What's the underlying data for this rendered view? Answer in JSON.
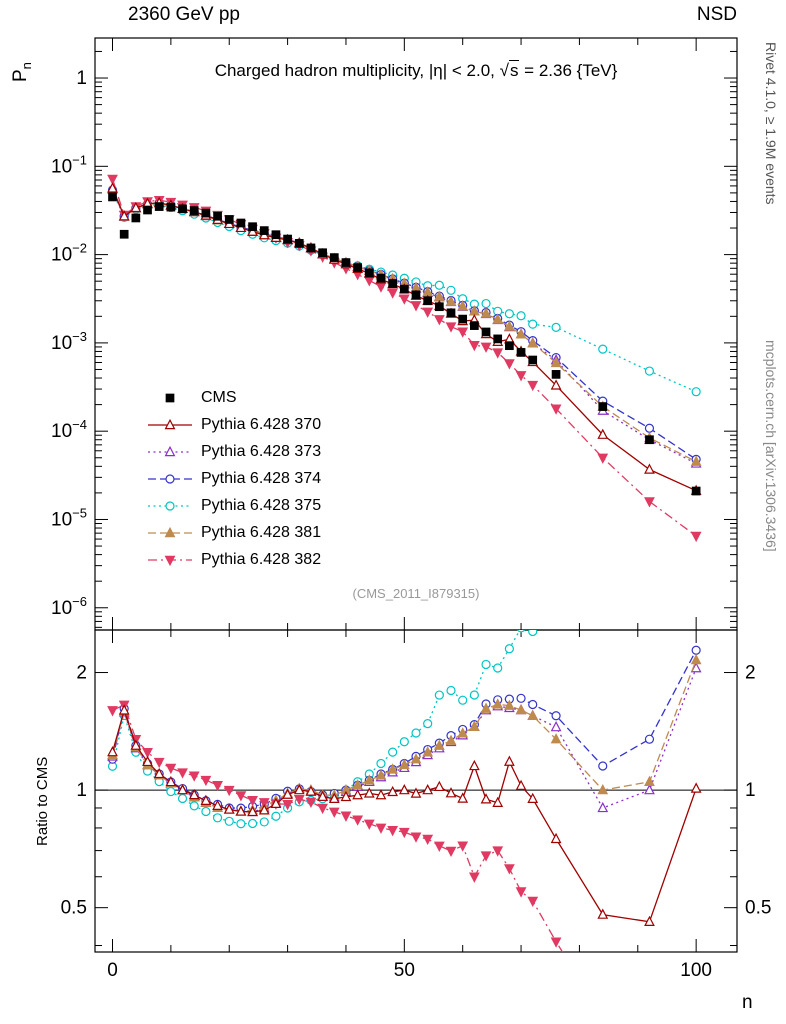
{
  "header": {
    "left": "2360 GeV pp",
    "right": "NSD"
  },
  "title": {
    "pre": "Charged hadron multiplicity, |η| < 2.0, ",
    "sqrt_sym": "√",
    "sqrt_arg": "s",
    "post": " = 2.36 {TeV}"
  },
  "watermark": "(CMS_2011_I879315)",
  "side_notes": {
    "top": "Rivet 4.1.0, ≥ 1.9M events",
    "bottom": "mcplots.cern.ch [arXiv:1306.3436]"
  },
  "axes": {
    "x_label": "n",
    "y_main_base": "P",
    "y_main_sub": "n",
    "y_ratio_label": "Ratio to CMS",
    "x_major_ticks": [
      0,
      50,
      100
    ],
    "x_minor_step": 10,
    "x_range": [
      -3,
      107
    ],
    "main_y_tick_exponents": [
      0,
      -1,
      -2,
      -3,
      -4,
      -5,
      -6
    ],
    "ratio_tick_labels": [
      "0.5",
      "1",
      "2"
    ],
    "ratio_tick_values": [
      0.5,
      1,
      2
    ]
  },
  "chart_data": {
    "type": "line",
    "title": "Charged hadron multiplicity, |η| < 2.0, √s = 2.36 {TeV}",
    "xlabel": "n",
    "ylabel": "P_n",
    "ratio_ylabel": "Ratio to CMS",
    "main_ylog": true,
    "ratio_ylog": true,
    "main_ylim": [
      5.6e-07,
      2.84
    ],
    "ratio_ylim": [
      0.385,
      2.57
    ],
    "x": [
      0,
      2,
      4,
      6,
      8,
      10,
      12,
      14,
      16,
      18,
      20,
      22,
      24,
      26,
      28,
      30,
      32,
      34,
      36,
      38,
      40,
      42,
      44,
      46,
      48,
      50,
      52,
      54,
      56,
      58,
      60,
      62,
      64,
      66,
      68,
      70,
      72,
      76,
      84,
      92,
      100
    ],
    "reference": {
      "key": "cms",
      "label": "CMS",
      "color": "#000000",
      "marker": "square",
      "filled": true,
      "values": [
        0.045,
        0.017,
        0.026,
        0.032,
        0.035,
        0.0345,
        0.033,
        0.0315,
        0.0295,
        0.0272,
        0.025,
        0.0228,
        0.0207,
        0.0187,
        0.0168,
        0.015,
        0.0134,
        0.0119,
        0.0105,
        0.00925,
        0.00812,
        0.00712,
        0.00622,
        0.00542,
        0.0047,
        0.00406,
        0.0035,
        0.003,
        0.00257,
        0.00219,
        0.00186,
        0.00157,
        0.00133,
        0.00111,
        0.00093,
        0.00078,
        0.00064,
        0.00044,
        0.00019,
        8e-05,
        2.1e-05
      ]
    },
    "series": [
      {
        "key": "pythia-370",
        "label": "Pythia 6.428 370",
        "color": "#a00000",
        "marker": "triangle-up",
        "filled": false,
        "line": "solid",
        "values": [
          0.0563,
          0.0272,
          0.0338,
          0.0378,
          0.0385,
          0.0362,
          0.033,
          0.0306,
          0.0277,
          0.0248,
          0.0223,
          0.0201,
          0.0182,
          0.0166,
          0.0155,
          0.0146,
          0.0134,
          0.0118,
          0.0101,
          0.00879,
          0.0078,
          0.00691,
          0.0061,
          0.00526,
          0.00465,
          0.00406,
          0.00343,
          0.003,
          0.00262,
          0.00215,
          0.00177,
          0.00181,
          0.00126,
          0.00103,
          0.0011,
          0.0008,
          0.000608,
          0.00033,
          9.12e-05,
          3.68e-05,
          2.12e-05
        ]
      },
      {
        "key": "pythia-373",
        "label": "Pythia 6.428 373",
        "color": "#8b2fc9",
        "marker": "triangle-up",
        "filled": false,
        "line": "dotted",
        "values": [
          0.0549,
          0.0269,
          0.0333,
          0.0371,
          0.0382,
          0.0359,
          0.033,
          0.0302,
          0.0274,
          0.0245,
          0.0223,
          0.0201,
          0.0182,
          0.0168,
          0.0156,
          0.0147,
          0.0135,
          0.0118,
          0.0101,
          0.00888,
          0.00804,
          0.00726,
          0.00653,
          0.00585,
          0.00522,
          0.00463,
          0.00413,
          0.00369,
          0.00329,
          0.00291,
          0.00257,
          0.00228,
          0.00213,
          0.00182,
          0.00151,
          0.00125,
          0.000992,
          0.000638,
          0.000171,
          8e-05,
          4.31e-05
        ]
      },
      {
        "key": "pythia-374",
        "label": "Pythia 6.428 374",
        "color": "#3333cc",
        "marker": "circle",
        "filled": false,
        "line": "dashed",
        "values": [
          0.054,
          0.0275,
          0.0338,
          0.0374,
          0.0385,
          0.0362,
          0.0333,
          0.0306,
          0.0277,
          0.025,
          0.0225,
          0.0205,
          0.0188,
          0.0172,
          0.016,
          0.0149,
          0.0135,
          0.0118,
          0.0102,
          0.00907,
          0.00812,
          0.00733,
          0.00659,
          0.00596,
          0.00531,
          0.00475,
          0.00427,
          0.00381,
          0.00339,
          0.00302,
          0.00266,
          0.00231,
          0.00221,
          0.00189,
          0.00159,
          0.00134,
          0.00106,
          0.000682,
          0.000219,
          0.000108,
          4.79e-05
        ]
      },
      {
        "key": "pythia-375",
        "label": "Pythia 6.428 375",
        "color": "#00c5c5",
        "marker": "circle",
        "filled": false,
        "line": "dotted",
        "values": [
          0.0518,
          0.0264,
          0.0325,
          0.0358,
          0.0368,
          0.0342,
          0.0314,
          0.0287,
          0.026,
          0.0231,
          0.0208,
          0.0187,
          0.017,
          0.0155,
          0.0144,
          0.0135,
          0.0125,
          0.0112,
          0.00998,
          0.00897,
          0.00812,
          0.00748,
          0.00684,
          0.00634,
          0.00588,
          0.0054,
          0.0049,
          0.00444,
          0.0045,
          0.00394,
          0.00316,
          0.00275,
          0.00279,
          0.00228,
          0.00214,
          0.00203,
          0.00163,
          0.0015,
          0.00085,
          0.00048,
          0.00028
        ]
      },
      {
        "key": "pythia-381",
        "label": "Pythia 6.428 381",
        "color": "#bf8a4e",
        "marker": "triangle-up",
        "filled": true,
        "line": "dashed",
        "values": [
          0.0554,
          0.027,
          0.0335,
          0.0371,
          0.0382,
          0.0359,
          0.033,
          0.0302,
          0.0274,
          0.0245,
          0.0223,
          0.0201,
          0.0184,
          0.017,
          0.0158,
          0.0147,
          0.0135,
          0.0119,
          0.0102,
          0.00897,
          0.00812,
          0.00733,
          0.00659,
          0.00591,
          0.00531,
          0.00471,
          0.0042,
          0.00375,
          0.00334,
          0.00293,
          0.0026,
          0.00228,
          0.00215,
          0.00184,
          0.00153,
          0.00125,
          0.000992,
          0.000594,
          0.00019,
          8.4e-05,
          4.52e-05
        ]
      },
      {
        "key": "pythia-382",
        "label": "Pythia 6.428 382",
        "color": "#e03a62",
        "marker": "triangle-down",
        "filled": true,
        "line": "dashdot",
        "values": [
          0.072,
          0.0281,
          0.0351,
          0.04,
          0.0413,
          0.0393,
          0.0366,
          0.0343,
          0.0313,
          0.028,
          0.025,
          0.0221,
          0.0195,
          0.0174,
          0.0155,
          0.0138,
          0.0127,
          0.0111,
          0.00945,
          0.00814,
          0.00698,
          0.00598,
          0.0051,
          0.00434,
          0.00371,
          0.00317,
          0.00266,
          0.00225,
          0.00185,
          0.00153,
          0.00134,
          0.000942,
          0.000904,
          0.000777,
          0.000586,
          0.000429,
          0.000333,
          0.00018,
          5e-05,
          1.6e-05,
          6.5e-06
        ]
      }
    ]
  }
}
